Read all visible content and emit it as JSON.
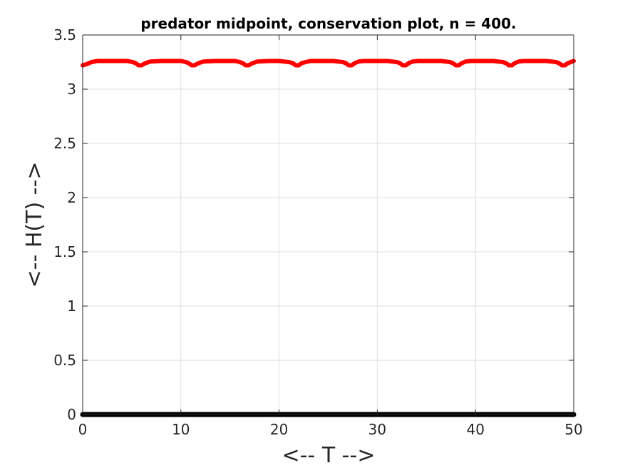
{
  "chart_data": {
    "type": "line",
    "title": "predator midpoint, conservation plot, n = 400.",
    "xlabel": "<-- T -->",
    "ylabel": "<-- H(T) -->",
    "xlim": [
      0,
      50
    ],
    "ylim": [
      0,
      3.5
    ],
    "xticks": [
      0,
      10,
      20,
      30,
      40,
      50
    ],
    "xtick_labels": [
      "0",
      "10",
      "20",
      "30",
      "40",
      "50"
    ],
    "yticks": [
      0,
      0.5,
      1,
      1.5,
      2,
      2.5,
      3,
      3.5
    ],
    "ytick_labels": [
      "0",
      "0.5",
      "1",
      "1.5",
      "2",
      "2.5",
      "3",
      "3.5"
    ],
    "grid": true,
    "series": [
      {
        "color": "#ff0000",
        "x": [
          0,
          0.4,
          0.9,
          1.5,
          2.5,
          3.5,
          4.5,
          5.1,
          5.4,
          5.7,
          6.0,
          6.4,
          6.9,
          8.0,
          9.0,
          10.0,
          10.5,
          10.8,
          11.1,
          11.4,
          11.8,
          12.3,
          13.5,
          14.5,
          15.5,
          16.0,
          16.3,
          16.6,
          16.9,
          17.3,
          17.8,
          19.0,
          20.0,
          21.0,
          21.4,
          21.7,
          22.0,
          22.3,
          22.7,
          23.2,
          24.5,
          25.5,
          26.5,
          26.8,
          27.1,
          27.4,
          27.7,
          28.1,
          28.6,
          30.0,
          31.0,
          32.0,
          32.3,
          32.6,
          32.9,
          33.2,
          33.6,
          34.1,
          35.5,
          36.5,
          37.4,
          37.7,
          38.0,
          38.3,
          38.6,
          39.0,
          39.5,
          40.8,
          41.8,
          42.8,
          43.1,
          43.4,
          43.7,
          44.0,
          44.4,
          44.9,
          46.2,
          47.2,
          48.2,
          48.5,
          48.8,
          49.1,
          49.4,
          49.7,
          50.0
        ],
        "y": [
          3.22,
          3.23,
          3.25,
          3.26,
          3.26,
          3.26,
          3.26,
          3.25,
          3.24,
          3.22,
          3.22,
          3.24,
          3.255,
          3.26,
          3.26,
          3.26,
          3.25,
          3.24,
          3.22,
          3.22,
          3.24,
          3.255,
          3.26,
          3.26,
          3.26,
          3.25,
          3.24,
          3.22,
          3.22,
          3.24,
          3.255,
          3.26,
          3.26,
          3.25,
          3.24,
          3.22,
          3.22,
          3.24,
          3.25,
          3.26,
          3.26,
          3.26,
          3.25,
          3.24,
          3.22,
          3.22,
          3.24,
          3.255,
          3.26,
          3.26,
          3.26,
          3.25,
          3.24,
          3.22,
          3.22,
          3.24,
          3.255,
          3.26,
          3.26,
          3.26,
          3.25,
          3.24,
          3.22,
          3.22,
          3.24,
          3.255,
          3.26,
          3.26,
          3.26,
          3.25,
          3.24,
          3.22,
          3.22,
          3.24,
          3.255,
          3.26,
          3.26,
          3.26,
          3.25,
          3.24,
          3.22,
          3.22,
          3.24,
          3.25,
          3.26
        ]
      },
      {
        "color": "#000000",
        "x": [
          0,
          50
        ],
        "y": [
          0,
          0
        ]
      }
    ]
  }
}
